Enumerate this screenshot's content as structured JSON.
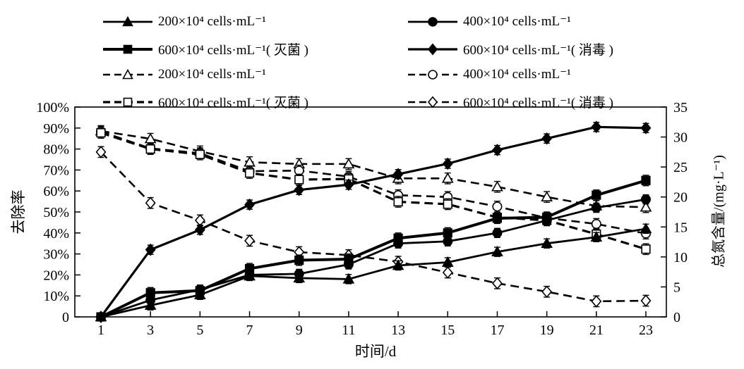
{
  "colors": {
    "foreground": "#000000",
    "background": "#ffffff"
  },
  "chart_data": {
    "type": "line",
    "title": "",
    "xlabel": "时间/d",
    "x": [
      1,
      3,
      5,
      7,
      9,
      11,
      13,
      15,
      17,
      19,
      21,
      23
    ],
    "left_axis": {
      "label": "去除率",
      "range": [
        0,
        100
      ],
      "ticks": [
        0,
        10,
        20,
        30,
        40,
        50,
        60,
        70,
        80,
        90,
        100
      ],
      "tick_labels": [
        "0",
        "10%",
        "20%",
        "30%",
        "40%",
        "50%",
        "60%",
        "70%",
        "80%",
        "90%",
        "100%"
      ]
    },
    "right_axis": {
      "label": "总氮含量/(mg·L⁻¹)",
      "range": [
        0,
        35
      ],
      "ticks": [
        0,
        5,
        10,
        15,
        20,
        25,
        30,
        35
      ],
      "tick_labels": [
        "0",
        "5",
        "10",
        "15",
        "20",
        "25",
        "30",
        "35"
      ]
    },
    "grid": false,
    "legend_position": "top-two-columns",
    "series": [
      {
        "id": "removal-200",
        "label": "200×10⁴ cells·mL⁻¹",
        "axis": "left",
        "line": "solid",
        "marker": "triangle",
        "filled": true,
        "line_width": 2.8,
        "error": 2.2,
        "values": [
          0,
          5.5,
          10.5,
          19.5,
          18.5,
          18,
          24.5,
          26,
          31,
          35,
          38,
          42
        ]
      },
      {
        "id": "removal-400",
        "label": "400×10⁴ cells·mL⁻¹",
        "axis": "left",
        "line": "solid",
        "marker": "circle",
        "filled": true,
        "line_width": 2.8,
        "error": 2.2,
        "values": [
          0,
          8,
          13,
          20,
          20.5,
          25,
          35,
          36,
          40,
          46,
          52,
          56
        ]
      },
      {
        "id": "removal-600-sterilized",
        "label": "600×10⁴ cells·mL⁻¹( 灭菌 )",
        "axis": "left",
        "line": "solid",
        "marker": "square",
        "filled": true,
        "line_width": 4,
        "error": 2.5,
        "values": [
          0,
          11.5,
          12.5,
          23,
          27,
          27.5,
          37.5,
          40,
          47,
          47.5,
          58,
          65
        ]
      },
      {
        "id": "removal-600-disinfected",
        "label": "600×10⁴ cells·mL⁻¹( 消毒 )",
        "axis": "left",
        "line": "solid",
        "marker": "diamond",
        "filled": true,
        "line_width": 3.2,
        "error": 2.2,
        "values": [
          0,
          32,
          41.5,
          53.5,
          60.5,
          63,
          68,
          73,
          79.5,
          85,
          90.5,
          90
        ]
      },
      {
        "id": "nitrogen-200",
        "label": "200×10⁴ cells·mL⁻¹",
        "axis": "right",
        "line": "dashed",
        "marker": "triangle",
        "filled": false,
        "line_width": 2.6,
        "error": 0.9,
        "values": [
          31,
          29.7,
          27.6,
          25.8,
          25.5,
          25.5,
          23.1,
          23.1,
          21.7,
          20,
          18.5,
          18.3
        ]
      },
      {
        "id": "nitrogen-400",
        "label": "400×10⁴ cells·mL⁻¹",
        "axis": "right",
        "line": "dashed",
        "marker": "circle",
        "filled": false,
        "line_width": 2.6,
        "error": 0.9,
        "values": [
          30.9,
          28.1,
          27.3,
          24.3,
          24.4,
          23.4,
          20.3,
          20,
          18.4,
          16.5,
          15.5,
          13.9
        ]
      },
      {
        "id": "nitrogen-600-sterilized",
        "label": "600×10⁴ cells·mL⁻¹( 灭菌 )",
        "axis": "right",
        "line": "dashed",
        "marker": "square",
        "filled": false,
        "line_width": 3.2,
        "error": 0.9,
        "values": [
          30.7,
          28,
          27.1,
          24,
          22.9,
          23,
          19.2,
          18.8,
          16.6,
          16.1,
          13.8,
          11.3
        ]
      },
      {
        "id": "nitrogen-600-disinfected",
        "label": "600×10⁴ cells·mL⁻¹( 消毒 )",
        "axis": "right",
        "line": "dashed",
        "marker": "diamond",
        "filled": false,
        "line_width": 2.6,
        "error": 0.9,
        "values": [
          27.5,
          19,
          16.1,
          12.7,
          10.8,
          10.3,
          9.2,
          7.4,
          5.6,
          4.2,
          2.6,
          2.7
        ]
      }
    ],
    "legend_rows": [
      [
        0,
        1
      ],
      [
        2,
        3
      ],
      [
        4,
        5
      ],
      [
        6,
        7
      ]
    ]
  }
}
